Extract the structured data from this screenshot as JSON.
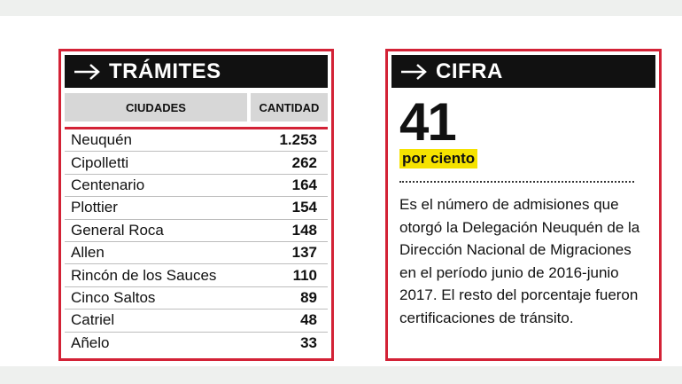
{
  "tramites": {
    "title": "TRÁMITES",
    "col_city": "CIUDADES",
    "col_qty": "CANTIDAD",
    "rows": [
      {
        "city": "Neuquén",
        "qty": "1.253"
      },
      {
        "city": "Cipolletti",
        "qty": "262"
      },
      {
        "city": "Centenario",
        "qty": "164"
      },
      {
        "city": "Plottier",
        "qty": "154"
      },
      {
        "city": "General Roca",
        "qty": "148"
      },
      {
        "city": "Allen",
        "qty": "137"
      },
      {
        "city": "Rincón de los Sauces",
        "qty": "110"
      },
      {
        "city": "Cinco Saltos",
        "qty": "89"
      },
      {
        "city": "Catriel",
        "qty": "48"
      },
      {
        "city": "Añelo",
        "qty": "33"
      }
    ]
  },
  "cifra": {
    "title": "CIFRA",
    "number": "41",
    "unit": "por ciento",
    "description": "Es el número de admisiones que otorgó la Delegación Neuquén de la Dirección Nacional de Migraciones en el período junio de 2016-junio 2017. El resto del porcentaje fueron certificaciones de tránsito."
  },
  "colors": {
    "border": "#d32236",
    "header": "#111111",
    "highlight": "#f5e200",
    "column_header": "#d7d7d7"
  },
  "icons": {
    "header_arrow": "arrow-right-icon"
  }
}
